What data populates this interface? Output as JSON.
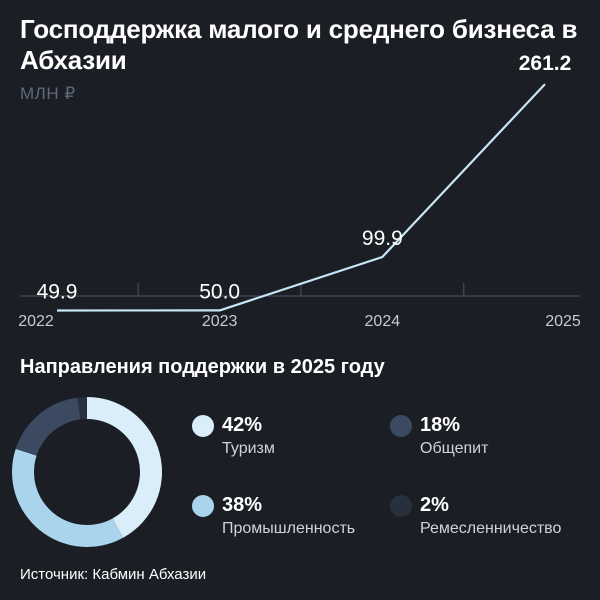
{
  "header": {
    "title": "Господдержка малого и среднего бизнеса в Абхазии",
    "unit": "МЛН ₽"
  },
  "chart_data": [
    {
      "type": "line",
      "title": "Господдержка малого и среднего бизнеса в Абхазии",
      "ylabel": "МЛН ₽",
      "categories": [
        "2022",
        "2023",
        "2024",
        "2025"
      ],
      "series": [
        {
          "values": [
            49.9,
            50.0,
            99.9,
            261.2
          ]
        }
      ],
      "value_labels": [
        "49.9",
        "50.0",
        "99.9",
        "261.2"
      ],
      "ylim": [
        0,
        280
      ],
      "grid": false,
      "color": "#c9e6f7"
    },
    {
      "type": "pie",
      "style": "donut",
      "title": "Направления поддержки в 2025 году",
      "categories": [
        "Туризм",
        "Промышленность",
        "Общепит",
        "Ремесленничество"
      ],
      "values": [
        42,
        38,
        18,
        2
      ],
      "colors": [
        "#d9eef8",
        "#a9d4ec",
        "#3b4a61",
        "#28303d"
      ]
    }
  ],
  "donut_section": {
    "title": "Направления поддержки в 2025 году",
    "legend": [
      {
        "pct": "42%",
        "name": "Туризм",
        "color": "#d9eef8"
      },
      {
        "pct": "18%",
        "name": "Общепит",
        "color": "#3b4a61"
      },
      {
        "pct": "38%",
        "name": "Промышленность",
        "color": "#a9d4ec"
      },
      {
        "pct": "2%",
        "name": "Ремесленничество",
        "color": "#28303d"
      }
    ]
  },
  "footer": {
    "source": "Источник: Кабмин Абхазии"
  }
}
